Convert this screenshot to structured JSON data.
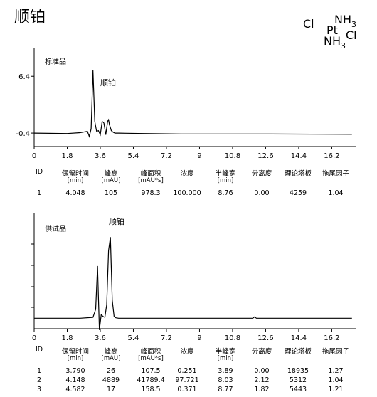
{
  "title": "顺铂",
  "formula": {
    "cl_left": "Cl",
    "pt": "Pt",
    "nh3_top_a": "NH",
    "nh3_top_sub": "3",
    "nh3_bot_a": "NH",
    "nh3_bot_sub": "3",
    "cl_right": "Cl"
  },
  "chart_data": [
    {
      "type": "line",
      "panel_label": "标准品",
      "peak_annotation": "顺铂",
      "xlim": [
        0,
        17.5
      ],
      "xticks": [
        "0",
        "1.8",
        "3.6",
        "5.4",
        "7.2",
        "9",
        "10.8",
        "12.6",
        "14.4",
        "16.2"
      ],
      "ytick_labels": [
        "6.4",
        "-0.4"
      ],
      "ytick_values": [
        6.4,
        -0.4
      ],
      "ylim": [
        -1.5,
        9.4
      ],
      "x": [
        0,
        1.8,
        2.5,
        2.9,
        3.0,
        3.1,
        3.2,
        3.3,
        3.4,
        3.5,
        3.6,
        3.7,
        3.8,
        3.9,
        4.0,
        4.05,
        4.1,
        4.2,
        4.3,
        4.4,
        4.6,
        5.0,
        6,
        8,
        12,
        17.3
      ],
      "y": [
        -0.4,
        -0.45,
        -0.35,
        -0.2,
        -0.8,
        0.1,
        7.1,
        1.0,
        -0.2,
        -0.1,
        -0.6,
        1.0,
        0.8,
        -0.6,
        1.0,
        1.2,
        0.6,
        -0.1,
        -0.3,
        -0.4,
        -0.4,
        -0.42,
        -0.45,
        -0.5,
        -0.5,
        -0.55
      ],
      "table": {
        "headers": [
          {
            "name": "ID"
          },
          {
            "name": "保留时间",
            "unit": "[min]"
          },
          {
            "name": "峰高",
            "unit": "[mAU]"
          },
          {
            "name": "峰面积",
            "unit": "[mAU*s]"
          },
          {
            "name": "浓度"
          },
          {
            "name": "半峰宽",
            "unit": "[min]"
          },
          {
            "name": "分离度"
          },
          {
            "name": "理论塔板"
          },
          {
            "name": "拖尾因子"
          }
        ],
        "rows": [
          [
            "1",
            "4.048",
            "105",
            "978.3",
            "100.000",
            "8.76",
            "0.00",
            "4259",
            "1.04"
          ]
        ]
      }
    },
    {
      "type": "line",
      "panel_label": "供试品",
      "peak_annotation": "顺铂",
      "xlim": [
        0,
        17.5
      ],
      "xticks": [
        "0",
        "1.8",
        "3.6",
        "5.4",
        "7.2",
        "9",
        "10.8",
        "12.6",
        "14.4",
        "16.2"
      ],
      "ylim": [
        -1,
        11
      ],
      "x": [
        0,
        2.5,
        3.2,
        3.35,
        3.45,
        3.55,
        3.65,
        3.75,
        3.85,
        3.95,
        4.05,
        4.15,
        4.25,
        4.35,
        4.45,
        4.6,
        5.0,
        8,
        11.9,
        12.0,
        12.1,
        17.3
      ],
      "y": [
        0,
        0,
        0.1,
        1.0,
        5.8,
        -1.3,
        0.4,
        0.2,
        0.1,
        1.5,
        7.5,
        9.0,
        2.0,
        0.2,
        0.05,
        0.0,
        0.0,
        0.0,
        0.0,
        0.15,
        0.0,
        0.0
      ],
      "table": {
        "headers": [
          {
            "name": "ID"
          },
          {
            "name": "保留时间",
            "unit": "[min]"
          },
          {
            "name": "峰高",
            "unit": "[mAU]"
          },
          {
            "name": "峰面积",
            "unit": "[mAU*s]"
          },
          {
            "name": "浓度"
          },
          {
            "name": "半峰宽",
            "unit": "[min]"
          },
          {
            "name": "分离度"
          },
          {
            "name": "理论塔板"
          },
          {
            "name": "拖尾因子"
          }
        ],
        "rows": [
          [
            "1",
            "3.790",
            "26",
            "107.5",
            "0.251",
            "3.89",
            "0.00",
            "18935",
            "1.27"
          ],
          [
            "2",
            "4.148",
            "4889",
            "41789.4",
            "97.721",
            "8.03",
            "2.12",
            "5312",
            "1.04"
          ],
          [
            "3",
            "4.582",
            "17",
            "158.5",
            "0.371",
            "8.77",
            "1.82",
            "5443",
            "1.21"
          ]
        ]
      }
    }
  ]
}
